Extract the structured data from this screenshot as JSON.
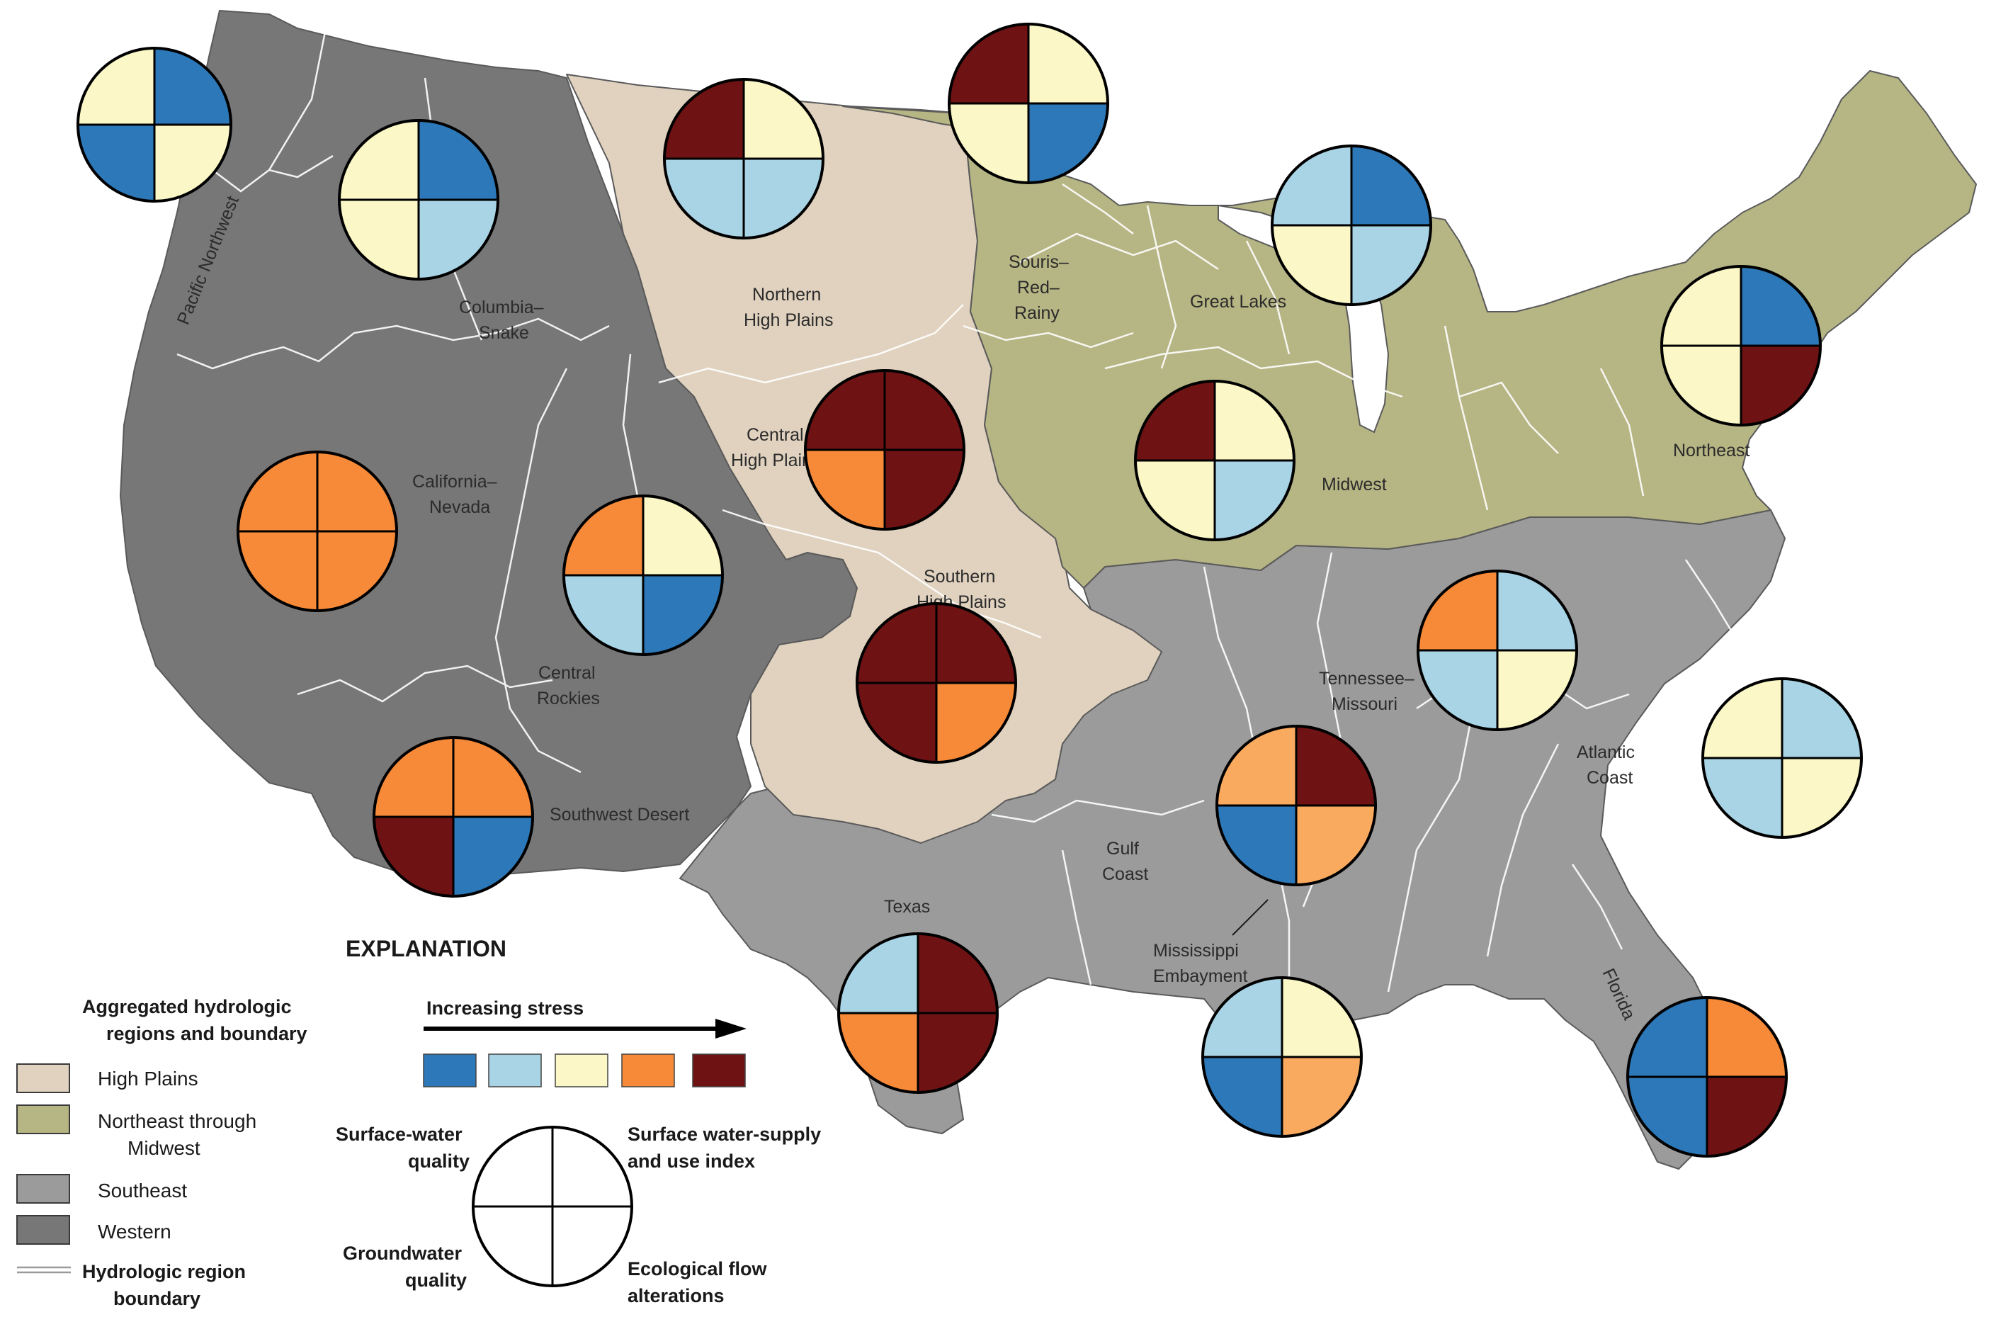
{
  "colors": {
    "stress": [
      "#2c78b8",
      "#a8d4e6",
      "#fbf7c6",
      "#f68a38",
      "#6e1214"
    ],
    "stress_light_orange": "#faaa5f",
    "high_plains": "#e0d2bf",
    "northeast_midwest": "#b6b584",
    "southeast": "#9b9b9b",
    "western": "#777777"
  },
  "region_labels": {
    "pacific_northwest": "Pacific Northwest",
    "columbia_snake_1": "Columbia–",
    "columbia_snake_2": "Snake",
    "northern_high_plains_1": "Northern",
    "northern_high_plains_2": "High Plains",
    "souris_1": "Souris–",
    "souris_2": "Red–",
    "souris_3": "Rainy",
    "great_lakes": "Great Lakes",
    "central_high_plains_1": "Central",
    "central_high_plains_2": "High Plains",
    "california_nevada_1": "California–",
    "california_nevada_2": "Nevada",
    "midwest": "Midwest",
    "northeast": "Northeast",
    "southern_high_plains_1": "Southern",
    "southern_high_plains_2": "High Plains",
    "central_rockies_1": "Central",
    "central_rockies_2": "Rockies",
    "tennessee_missouri_1": "Tennessee–",
    "tennessee_missouri_2": "Missouri",
    "atlantic_coast_1": "Atlantic",
    "atlantic_coast_2": "Coast",
    "southwest_desert": "Southwest Desert",
    "gulf_coast_1": "Gulf",
    "gulf_coast_2": "Coast",
    "texas": "Texas",
    "mississippi_embayment_1": "Mississippi",
    "mississippi_embayment_2": "Embayment",
    "florida": "Florida"
  },
  "pies": [
    {
      "region": "Pacific Northwest",
      "stress_levels": [
        3,
        1,
        1,
        3
      ]
    },
    {
      "region": "Columbia–Snake",
      "stress_levels": [
        3,
        1,
        3,
        2
      ]
    },
    {
      "region": "Northern High Plains",
      "stress_levels": [
        5,
        3,
        2,
        2
      ]
    },
    {
      "region": "Souris–Red–Rainy",
      "stress_levels": [
        5,
        3,
        3,
        1
      ]
    },
    {
      "region": "Great Lakes",
      "stress_levels": [
        2,
        1,
        3,
        2
      ]
    },
    {
      "region": "Northeast",
      "stress_levels": [
        3,
        1,
        3,
        5
      ]
    },
    {
      "region": "Central High Plains",
      "stress_levels": [
        5,
        5,
        4,
        5
      ]
    },
    {
      "region": "Midwest",
      "stress_levels": [
        5,
        3,
        3,
        2
      ]
    },
    {
      "region": "California–Nevada",
      "stress_levels": [
        4,
        4,
        4,
        4
      ]
    },
    {
      "region": "Central Rockies",
      "stress_levels": [
        4,
        3,
        2,
        1
      ]
    },
    {
      "region": "Southern High Plains",
      "stress_levels": [
        5,
        5,
        5,
        4
      ]
    },
    {
      "region": "Tennessee–Missouri",
      "stress_levels": [
        4,
        2,
        2,
        3
      ]
    },
    {
      "region": "Atlantic Coast",
      "stress_levels": [
        3,
        2,
        2,
        3
      ]
    },
    {
      "region": "Southwest Desert",
      "stress_levels": [
        4,
        4,
        5,
        1
      ]
    },
    {
      "region": "Gulf Coast",
      "stress_levels": [
        "4-light",
        5,
        1,
        "4-light"
      ]
    },
    {
      "region": "Texas",
      "stress_levels": [
        2,
        5,
        4,
        5
      ]
    },
    {
      "region": "Mississippi Embayment",
      "stress_levels": [
        2,
        3,
        1,
        "4-light"
      ]
    },
    {
      "region": "Florida",
      "stress_levels": [
        1,
        4,
        1,
        5
      ]
    }
  ],
  "explanation": {
    "title": "EXPLANATION",
    "regions_heading_1": "Aggregated hydrologic",
    "regions_heading_2": "regions and boundary",
    "regions": {
      "high_plains": "High Plains",
      "northeast_midwest_1": "Northeast through",
      "northeast_midwest_2": "Midwest",
      "southeast": "Southeast",
      "western": "Western"
    },
    "boundary_1": "Hydrologic region",
    "boundary_2": "boundary",
    "stress_label": "Increasing stress",
    "quadrants": {
      "sw_quality_1": "Surface-water",
      "sw_quality_2": "quality",
      "sw_supply_1": "Surface water-supply",
      "sw_supply_2": "and use index",
      "gw_quality_1": "Groundwater",
      "gw_quality_2": "quality",
      "eco_flow_1": "Ecological flow",
      "eco_flow_2": "alterations"
    }
  }
}
